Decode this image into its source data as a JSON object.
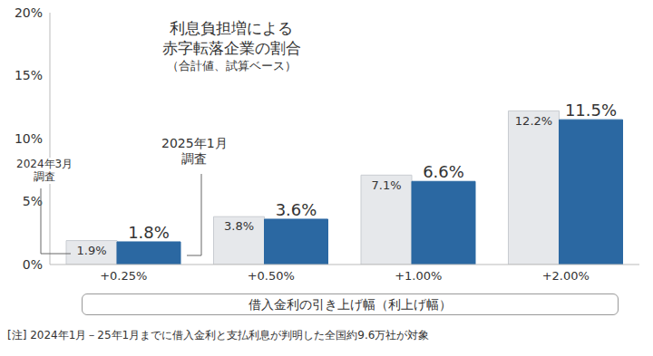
{
  "chart_data": {
    "type": "bar",
    "title": "利息負担増による\n赤字転落企業の割合",
    "subtitle": "（合計値、試算ベース）",
    "x_label": "借入金利の引き上げ幅（利上げ幅）",
    "annotations": [
      "[注]  2024年1月－25年1月までに借入金利と支払利息が判明した全国約9.6万社が対象"
    ],
    "categories": [
      "+0.25%",
      "+0.50%",
      "+1.00%",
      "+2.00%"
    ],
    "series": [
      {
        "name": "2024年3月\n調査",
        "color": "#e6e8eb",
        "values": [
          1.9,
          3.8,
          7.1,
          12.2
        ],
        "value_labels": [
          "1.9%",
          "3.8%",
          "7.1%",
          "12.2%"
        ]
      },
      {
        "name": "2025年1月\n調査",
        "color": "#2b68a2",
        "values": [
          1.8,
          3.6,
          6.6,
          11.5
        ],
        "value_labels": [
          "1.8%",
          "3.6%",
          "6.6%",
          "11.5%"
        ]
      }
    ],
    "ylim": [
      0,
      20
    ],
    "yticks": [
      {
        "value": 0,
        "label": "0%"
      },
      {
        "value": 5,
        "label": "5%"
      },
      {
        "value": 10,
        "label": "10%"
      },
      {
        "value": 15,
        "label": "15%"
      },
      {
        "value": 20,
        "label": "20%"
      }
    ],
    "grid": false,
    "data_labels": true
  }
}
